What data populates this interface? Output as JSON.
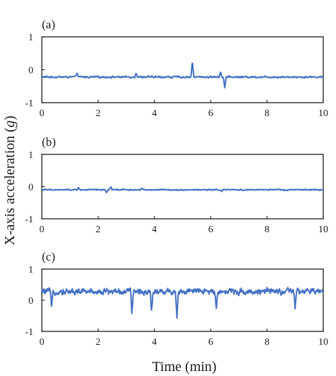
{
  "figure": {
    "ylabel_prefix": "X-axis acceleration (",
    "ylabel_unit": "g",
    "ylabel_suffix": ")",
    "xlabel": "Time (min)",
    "line_color": "#4472C4"
  },
  "chart_data": [
    {
      "type": "line",
      "panel_label": "(a)",
      "xlim": [
        0,
        10
      ],
      "ylim": [
        -1,
        1
      ],
      "xticks": [
        0,
        2,
        4,
        6,
        8,
        10
      ],
      "yticks": [
        1,
        0,
        -1
      ],
      "grid": false,
      "baseline": -0.22,
      "noise": 0.025,
      "series": [
        {
          "color": "#4472C4"
        }
      ],
      "features": [
        {
          "t": 1.25,
          "y": -0.08
        },
        {
          "t": 3.35,
          "y": -0.07
        },
        {
          "t": 5.35,
          "y": 0.27
        },
        {
          "t": 6.35,
          "y": -0.05
        },
        {
          "t": 6.5,
          "y": -0.55
        }
      ]
    },
    {
      "type": "line",
      "panel_label": "(b)",
      "xlim": [
        0,
        10
      ],
      "ylim": [
        -1,
        1
      ],
      "xticks": [
        0,
        2,
        4,
        6,
        8,
        10
      ],
      "yticks": [
        1,
        0,
        -1
      ],
      "grid": false,
      "baseline": -0.1,
      "noise": 0.018,
      "series": [
        {
          "color": "#4472C4"
        }
      ],
      "features": [
        {
          "t": 1.3,
          "y": -0.04
        },
        {
          "t": 2.3,
          "y": -0.2
        },
        {
          "t": 2.45,
          "y": 0.0
        },
        {
          "t": 3.55,
          "y": -0.03
        },
        {
          "t": 6.4,
          "y": -0.15
        }
      ]
    },
    {
      "type": "line",
      "panel_label": "(c)",
      "xlim": [
        0,
        10
      ],
      "ylim": [
        -1,
        1
      ],
      "xticks": [
        0,
        2,
        4,
        6,
        8,
        10
      ],
      "yticks": [
        1,
        0,
        -1
      ],
      "grid": false,
      "baseline": 0.28,
      "noise": 0.09,
      "series": [
        {
          "color": "#4472C4"
        }
      ],
      "features": [
        {
          "t": 0.35,
          "y": -0.3
        },
        {
          "t": 3.2,
          "y": -0.45
        },
        {
          "t": 3.9,
          "y": -0.3
        },
        {
          "t": 4.8,
          "y": -0.55
        },
        {
          "t": 6.2,
          "y": -0.2
        },
        {
          "t": 9.0,
          "y": -0.25
        }
      ]
    }
  ]
}
